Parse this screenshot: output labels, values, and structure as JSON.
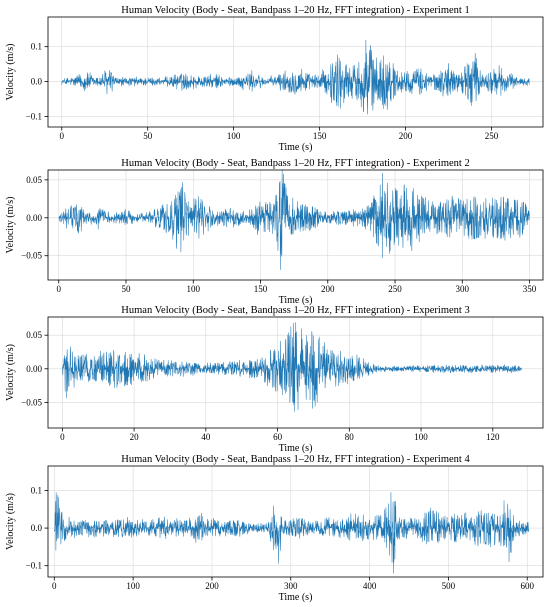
{
  "chart_data": [
    {
      "type": "line",
      "title": "Human Velocity (Body - Seat, Bandpass 1–20 Hz, FFT integration) - Experiment 1",
      "xlabel": "Time (s)",
      "ylabel": "Velocity (m/s)",
      "xlim": [
        -8,
        280
      ],
      "ylim": [
        -0.13,
        0.185
      ],
      "xticks": [
        0,
        50,
        100,
        150,
        200,
        250
      ],
      "yticks": [
        -0.1,
        0.0,
        0.1
      ],
      "ytick_labels": [
        "−0.1",
        "0.0",
        "0.1"
      ],
      "grid": true,
      "series_color": "#1f77b4",
      "x_end": 272,
      "noise_floor": 0.004,
      "envelope": [
        [
          0,
          0.006
        ],
        [
          5,
          0.012
        ],
        [
          10,
          0.02
        ],
        [
          15,
          0.03
        ],
        [
          20,
          0.012
        ],
        [
          27,
          0.042
        ],
        [
          32,
          0.01
        ],
        [
          45,
          0.012
        ],
        [
          60,
          0.01
        ],
        [
          70,
          0.025
        ],
        [
          80,
          0.015
        ],
        [
          90,
          0.02
        ],
        [
          100,
          0.01
        ],
        [
          110,
          0.03
        ],
        [
          120,
          0.01
        ],
        [
          130,
          0.03
        ],
        [
          140,
          0.045
        ],
        [
          145,
          0.015
        ],
        [
          155,
          0.04
        ],
        [
          160,
          0.09
        ],
        [
          165,
          0.06
        ],
        [
          170,
          0.05
        ],
        [
          175,
          0.08
        ],
        [
          178,
          0.17
        ],
        [
          182,
          0.06
        ],
        [
          188,
          0.09
        ],
        [
          195,
          0.04
        ],
        [
          200,
          0.03
        ],
        [
          210,
          0.04
        ],
        [
          215,
          0.02
        ],
        [
          225,
          0.05
        ],
        [
          232,
          0.025
        ],
        [
          240,
          0.09
        ],
        [
          245,
          0.02
        ],
        [
          255,
          0.045
        ],
        [
          262,
          0.02
        ],
        [
          272,
          0.008
        ]
      ]
    },
    {
      "type": "line",
      "title": "Human Velocity (Body - Seat, Bandpass 1–20 Hz, FFT integration) - Experiment 2",
      "xlabel": "Time (s)",
      "ylabel": "Velocity (m/s)",
      "xlim": [
        -8,
        360
      ],
      "ylim": [
        -0.082,
        0.063
      ],
      "xticks": [
        0,
        50,
        100,
        150,
        200,
        250,
        300,
        350
      ],
      "yticks": [
        -0.05,
        0.0,
        0.05
      ],
      "ytick_labels": [
        "−0.05",
        "0.00",
        "0.05"
      ],
      "grid": true,
      "series_color": "#1f77b4",
      "x_end": 350,
      "noise_floor": 0.002,
      "envelope": [
        [
          0,
          0.005
        ],
        [
          5,
          0.012
        ],
        [
          15,
          0.022
        ],
        [
          20,
          0.008
        ],
        [
          30,
          0.015
        ],
        [
          40,
          0.004
        ],
        [
          50,
          0.01
        ],
        [
          60,
          0.004
        ],
        [
          75,
          0.015
        ],
        [
          85,
          0.03
        ],
        [
          92,
          0.055
        ],
        [
          97,
          0.02
        ],
        [
          105,
          0.03
        ],
        [
          115,
          0.01
        ],
        [
          130,
          0.012
        ],
        [
          140,
          0.006
        ],
        [
          150,
          0.025
        ],
        [
          160,
          0.02
        ],
        [
          165,
          0.078
        ],
        [
          170,
          0.03
        ],
        [
          180,
          0.02
        ],
        [
          190,
          0.015
        ],
        [
          200,
          0.008
        ],
        [
          215,
          0.012
        ],
        [
          225,
          0.012
        ],
        [
          235,
          0.03
        ],
        [
          240,
          0.06
        ],
        [
          245,
          0.05
        ],
        [
          250,
          0.04
        ],
        [
          260,
          0.05
        ],
        [
          270,
          0.03
        ],
        [
          280,
          0.02
        ],
        [
          290,
          0.03
        ],
        [
          300,
          0.025
        ],
        [
          310,
          0.03
        ],
        [
          320,
          0.025
        ],
        [
          335,
          0.03
        ],
        [
          345,
          0.025
        ],
        [
          350,
          0.01
        ]
      ]
    },
    {
      "type": "line",
      "title": "Human Velocity (Body - Seat, Bandpass 1–20 Hz, FFT integration) - Experiment 3",
      "xlabel": "Time (s)",
      "ylabel": "Velocity (m/s)",
      "xlim": [
        -4,
        134
      ],
      "ylim": [
        -0.088,
        0.077
      ],
      "xticks": [
        0,
        20,
        40,
        60,
        80,
        100,
        120
      ],
      "yticks": [
        -0.05,
        0.0,
        0.05
      ],
      "ytick_labels": [
        "−0.05",
        "0.00",
        "0.05"
      ],
      "grid": true,
      "series_color": "#1f77b4",
      "x_end": 128,
      "noise_floor": 0.0015,
      "envelope": [
        [
          0,
          0.01
        ],
        [
          1,
          0.05
        ],
        [
          3,
          0.03
        ],
        [
          6,
          0.02
        ],
        [
          10,
          0.025
        ],
        [
          14,
          0.03
        ],
        [
          18,
          0.025
        ],
        [
          22,
          0.025
        ],
        [
          26,
          0.015
        ],
        [
          30,
          0.012
        ],
        [
          35,
          0.01
        ],
        [
          40,
          0.008
        ],
        [
          45,
          0.01
        ],
        [
          50,
          0.012
        ],
        [
          55,
          0.015
        ],
        [
          58,
          0.03
        ],
        [
          62,
          0.045
        ],
        [
          65,
          0.075
        ],
        [
          68,
          0.05
        ],
        [
          71,
          0.07
        ],
        [
          74,
          0.03
        ],
        [
          78,
          0.025
        ],
        [
          82,
          0.02
        ],
        [
          85,
          0.01
        ],
        [
          88,
          0.004
        ],
        [
          95,
          0.003
        ],
        [
          105,
          0.006
        ],
        [
          115,
          0.005
        ],
        [
          125,
          0.006
        ],
        [
          128,
          0.004
        ]
      ]
    },
    {
      "type": "line",
      "title": "Human Velocity (Body - Seat, Bandpass 1–20 Hz, FFT integration) - Experiment 4",
      "xlabel": "Time (s)",
      "ylabel": "Velocity (m/s)",
      "xlim": [
        -8,
        620
      ],
      "ylim": [
        -0.13,
        0.165
      ],
      "xticks": [
        0,
        100,
        200,
        300,
        400,
        500,
        600
      ],
      "yticks": [
        -0.1,
        0.0,
        0.1
      ],
      "ytick_labels": [
        "−0.1",
        "0.0",
        "0.1"
      ],
      "grid": true,
      "series_color": "#1f77b4",
      "x_end": 602,
      "noise_floor": 0.004,
      "envelope": [
        [
          0,
          0.02
        ],
        [
          3,
          0.15
        ],
        [
          8,
          0.05
        ],
        [
          15,
          0.03
        ],
        [
          30,
          0.02
        ],
        [
          45,
          0.03
        ],
        [
          60,
          0.02
        ],
        [
          80,
          0.03
        ],
        [
          100,
          0.025
        ],
        [
          120,
          0.02
        ],
        [
          140,
          0.03
        ],
        [
          160,
          0.02
        ],
        [
          185,
          0.04
        ],
        [
          195,
          0.025
        ],
        [
          210,
          0.02
        ],
        [
          230,
          0.025
        ],
        [
          250,
          0.01
        ],
        [
          270,
          0.015
        ],
        [
          285,
          0.1
        ],
        [
          290,
          0.02
        ],
        [
          310,
          0.03
        ],
        [
          330,
          0.015
        ],
        [
          345,
          0.03
        ],
        [
          360,
          0.02
        ],
        [
          380,
          0.04
        ],
        [
          400,
          0.03
        ],
        [
          420,
          0.05
        ],
        [
          430,
          0.12
        ],
        [
          440,
          0.03
        ],
        [
          460,
          0.025
        ],
        [
          480,
          0.06
        ],
        [
          490,
          0.03
        ],
        [
          510,
          0.04
        ],
        [
          530,
          0.045
        ],
        [
          550,
          0.05
        ],
        [
          565,
          0.04
        ],
        [
          575,
          0.12
        ],
        [
          585,
          0.02
        ],
        [
          600,
          0.02
        ]
      ]
    }
  ]
}
